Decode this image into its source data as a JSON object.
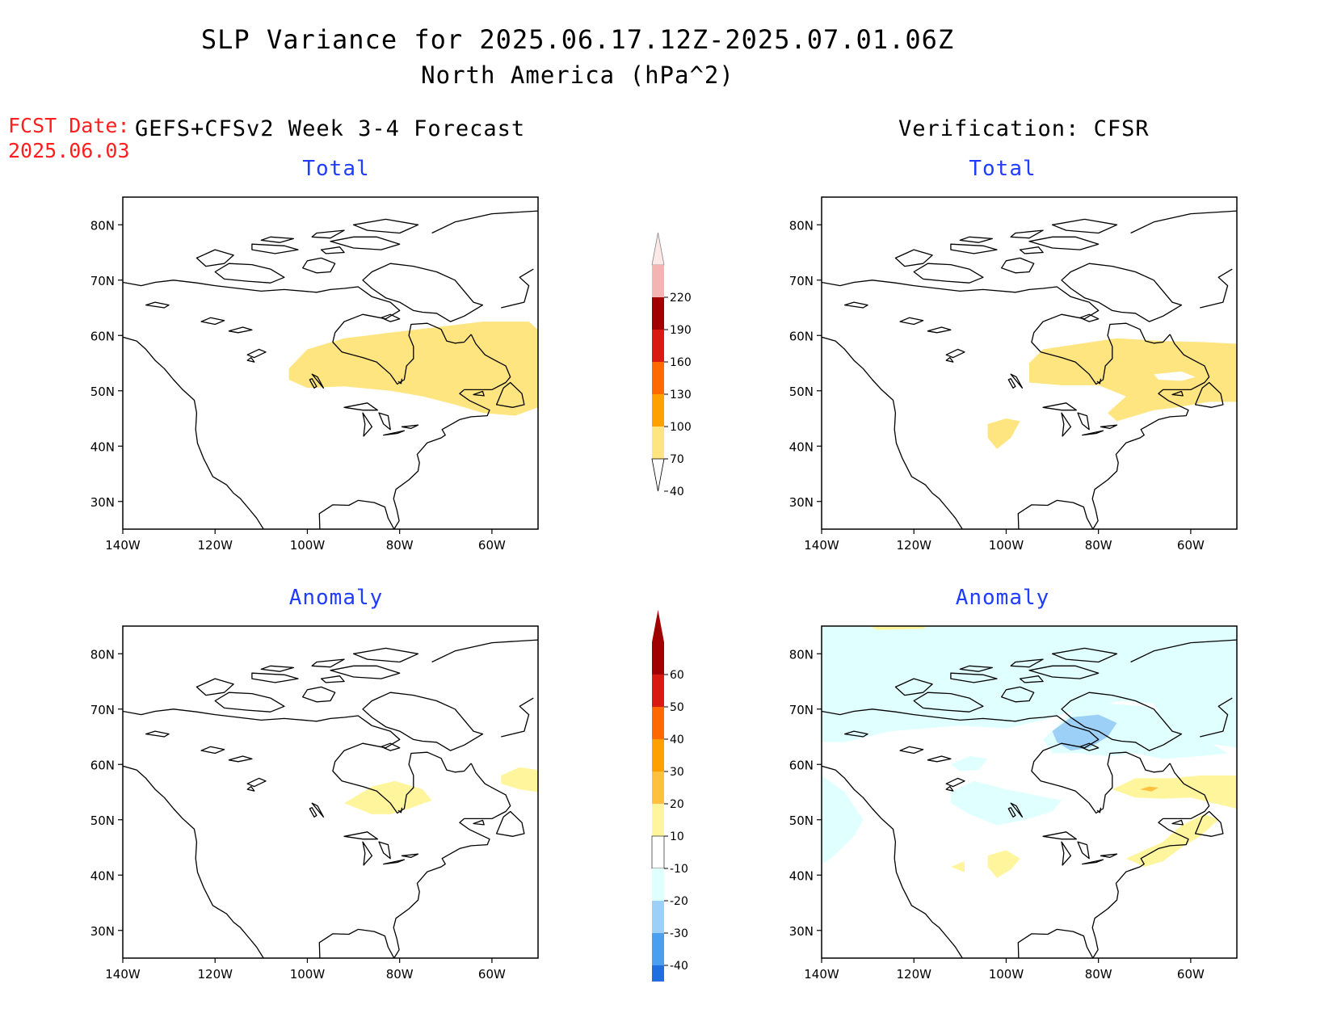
{
  "title": {
    "line1": "SLP Variance for 2025.06.17.12Z-2025.07.01.06Z",
    "line2": "North America (hPa^2)"
  },
  "fcst_date": {
    "label": "FCST Date:",
    "value": "2025.06.03"
  },
  "columns": {
    "left": "GEFS+CFSv2 Week 3-4 Forecast",
    "right": "Verification: CFSR"
  },
  "panels": [
    {
      "id": "forecast-total",
      "title": "Total"
    },
    {
      "id": "verification-total",
      "title": "Total"
    },
    {
      "id": "forecast-anomaly",
      "title": "Anomaly"
    },
    {
      "id": "verification-anomaly",
      "title": "Anomaly"
    }
  ],
  "axes": {
    "x_ticks": [
      "140W",
      "120W",
      "100W",
      "80W",
      "60W"
    ],
    "y_ticks": [
      "80N",
      "70N",
      "60N",
      "50N",
      "40N",
      "30N"
    ],
    "lon_range": [
      -140,
      -50
    ],
    "lat_range": [
      25,
      85
    ]
  },
  "colorbars": {
    "total": {
      "labels": [
        "220",
        "190",
        "160",
        "130",
        "100",
        "70",
        "40"
      ],
      "colors": [
        "#f4b4b4",
        "#a00000",
        "#d81a10",
        "#ff6a00",
        "#ffa000",
        "#ffe57f"
      ]
    },
    "anomaly": {
      "labels": [
        "60",
        "50",
        "40",
        "30",
        "20",
        "10",
        "-10",
        "-20",
        "-30",
        "-40"
      ],
      "colors": [
        "#a00000",
        "#d81a10",
        "#ff6a00",
        "#ffa000",
        "#ffc040",
        "#fff59d",
        "#ffffff",
        "#e0ffff",
        "#9dd0f6",
        "#4aa0f0",
        "#1e6fe0"
      ]
    }
  },
  "map_colors": {
    "total_fill": "#ffe57f",
    "anom_pos1": "#fff59d",
    "anom_pos2": "#ffc040",
    "anom_pos3": "#ffa000",
    "anom_neg1": "#e0ffff",
    "anom_neg2": "#9dd0f6"
  }
}
